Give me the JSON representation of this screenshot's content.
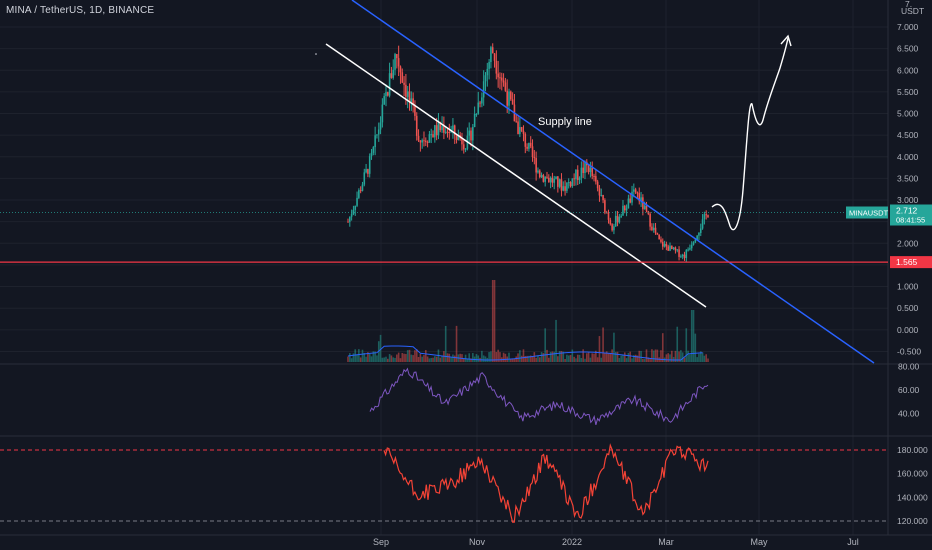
{
  "header": {
    "symbol_line": "MINA / TetherUS, 1D, BINANCE"
  },
  "price_axis": {
    "currency": "USDT",
    "top_label": "7.",
    "labels": [
      "7.000",
      "6.500",
      "6.000",
      "5.500",
      "5.000",
      "4.500",
      "4.000",
      "3.500",
      "3.000",
      "2.500",
      "2.000",
      "1.500",
      "1.000",
      "0.500",
      "0.000",
      "-0.500"
    ],
    "values": [
      7.0,
      6.5,
      6.0,
      5.5,
      5.0,
      4.5,
      4.0,
      3.5,
      3.0,
      2.5,
      2.0,
      1.5,
      1.0,
      0.5,
      0.0,
      -0.5
    ]
  },
  "current_price": {
    "symbol": "MINAUSDT",
    "price": "2.712",
    "countdown": "08:41:55",
    "color": "#26a69a"
  },
  "support_level": {
    "label": "1.565",
    "value": 1.565,
    "color": "#f23645"
  },
  "annotations": {
    "supply_line_label": "Supply line"
  },
  "time_axis": {
    "labels": [
      "Sep",
      "Nov",
      "2022",
      "Mar",
      "May",
      "Jul"
    ]
  },
  "rsi_axis": {
    "labels": [
      "80.00",
      "60.00",
      "40.00"
    ],
    "values": [
      80,
      60,
      40
    ]
  },
  "cci_axis": {
    "labels": [
      "180.000",
      "160.000",
      "140.000",
      "120.000"
    ],
    "values": [
      180,
      160,
      140,
      120
    ]
  },
  "colors": {
    "background": "#131722",
    "up": "#26a69a",
    "down": "#ef5350",
    "supply_trendline": "#2962ff",
    "channel_line": "#ffffff",
    "rsi": "#7e57c2",
    "cci": "#f44336",
    "volume_ma": "#2962ff"
  },
  "chart_data": {
    "type": "candlestick",
    "symbol": "MINA / TetherUS",
    "interval": "1D",
    "exchange": "BINANCE",
    "price_key_points": [
      {
        "date": "2021-08",
        "value": 2.5
      },
      {
        "date": "2021-08-end",
        "value": 4.0
      },
      {
        "date": "2021-09-06",
        "value": 6.4
      },
      {
        "date": "2021-09-20",
        "value": 4.4
      },
      {
        "date": "2021-10-01",
        "value": 4.7
      },
      {
        "date": "2021-10-20",
        "value": 4.3
      },
      {
        "date": "2021-11-01",
        "value": 6.5
      },
      {
        "date": "2021-11-15",
        "value": 4.8
      },
      {
        "date": "2021-12-01",
        "value": 3.6
      },
      {
        "date": "2021-12-20",
        "value": 3.3
      },
      {
        "date": "2022-01-01",
        "value": 3.8
      },
      {
        "date": "2022-01-20",
        "value": 2.4
      },
      {
        "date": "2022-02-05",
        "value": 3.2
      },
      {
        "date": "2022-02-25",
        "value": 2.0
      },
      {
        "date": "2022-03-05",
        "value": 1.7
      },
      {
        "date": "2022-03-16",
        "value": 2.712
      }
    ],
    "last_price": 2.712,
    "support_level": 1.565,
    "rsi_key_points": [
      {
        "date": "2021-08",
        "value": 42
      },
      {
        "date": "2021-09-06",
        "value": 78
      },
      {
        "date": "2021-10-01",
        "value": 48
      },
      {
        "date": "2021-11-01",
        "value": 72
      },
      {
        "date": "2021-12-10",
        "value": 36
      },
      {
        "date": "2022-01-01",
        "value": 48
      },
      {
        "date": "2022-01-20",
        "value": 34
      },
      {
        "date": "2022-02-05",
        "value": 52
      },
      {
        "date": "2022-03-01",
        "value": 34
      },
      {
        "date": "2022-03-16",
        "value": 68
      }
    ],
    "cci_key_points": [
      {
        "date": "2021-09-01",
        "value": 180
      },
      {
        "date": "2021-09-20",
        "value": 142
      },
      {
        "date": "2021-10-10",
        "value": 150
      },
      {
        "date": "2021-11-01",
        "value": 172
      },
      {
        "date": "2021-12-01",
        "value": 122
      },
      {
        "date": "2022-01-01",
        "value": 175
      },
      {
        "date": "2022-01-25",
        "value": 122
      },
      {
        "date": "2022-02-05",
        "value": 182
      },
      {
        "date": "2022-03-01",
        "value": 125
      },
      {
        "date": "2022-03-12",
        "value": 183
      },
      {
        "date": "2022-03-16",
        "value": 165
      }
    ],
    "cci_bands": [
      180,
      120
    ],
    "ylim_price": [
      -0.5,
      7.2
    ],
    "ylim_rsi": [
      25,
      85
    ],
    "ylim_cci": [
      115,
      185
    ]
  }
}
